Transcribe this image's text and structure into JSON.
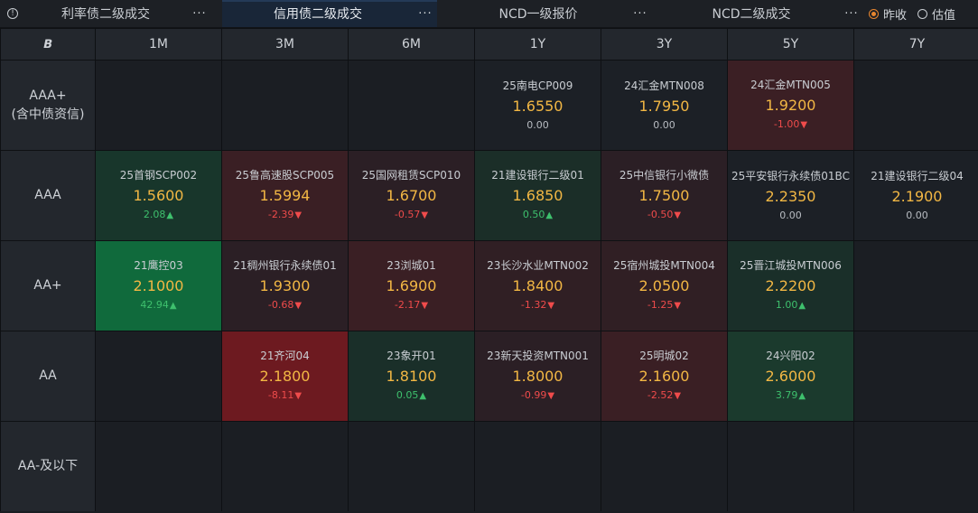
{
  "tabs": [
    {
      "label": "利率债二级成交",
      "more": "···",
      "active": false
    },
    {
      "label": "信用债二级成交",
      "more": "···",
      "active": true
    },
    {
      "label": "NCD一级报价",
      "more": "···",
      "active": false
    },
    {
      "label": "NCD二级成交",
      "more": "···",
      "active": false
    }
  ],
  "radio": {
    "options": [
      {
        "label": "昨收",
        "selected": true
      },
      {
        "label": "估值",
        "selected": false
      }
    ],
    "selected_color": "#e8862f"
  },
  "icons": {
    "info": "info-circle-icon",
    "corner": "bold-b-icon"
  },
  "grid": {
    "columns": [
      "1M",
      "3M",
      "6M",
      "1Y",
      "3Y",
      "5Y",
      "7Y"
    ],
    "rows": [
      {
        "label": [
          "AAA+",
          "(含中债资信)"
        ],
        "cells": [
          null,
          null,
          null,
          {
            "name": "25南电CP009",
            "rate": "1.6550",
            "change": "0.00",
            "dir": "flat",
            "bg": "#1c2026"
          },
          {
            "name": "24汇金MTN008",
            "rate": "1.7950",
            "change": "0.00",
            "dir": "flat",
            "bg": "#1c2026"
          },
          {
            "name": "24汇金MTN005",
            "rate": "1.9200",
            "change": "-1.00",
            "dir": "down",
            "bg": "#3b1f24"
          },
          null
        ]
      },
      {
        "label": [
          "AAA"
        ],
        "cells": [
          {
            "name": "25首钢SCP002",
            "rate": "1.5600",
            "change": "2.08",
            "dir": "up",
            "bg": "#18362b"
          },
          {
            "name": "25鲁高速股SCP005",
            "rate": "1.5994",
            "change": "-2.39",
            "dir": "down",
            "bg": "#3a1f24"
          },
          {
            "name": "25国网租赁SCP010",
            "rate": "1.6700",
            "change": "-0.57",
            "dir": "down",
            "bg": "#2b1f25"
          },
          {
            "name": "21建设银行二级01",
            "rate": "1.6850",
            "change": "0.50",
            "dir": "up",
            "bg": "#1b2e28"
          },
          {
            "name": "25中信银行小微债",
            "rate": "1.7500",
            "change": "-0.50",
            "dir": "down",
            "bg": "#2b1f25"
          },
          {
            "name": "25平安银行永续债01BC",
            "rate": "2.2350",
            "change": "0.00",
            "dir": "flat",
            "bg": "#1c2026"
          },
          {
            "name": "21建设银行二级04",
            "rate": "2.1900",
            "change": "0.00",
            "dir": "flat",
            "bg": "#1c2026"
          }
        ]
      },
      {
        "label": [
          "AA+"
        ],
        "cells": [
          {
            "name": "21鹰控03",
            "rate": "2.1000",
            "change": "42.94",
            "dir": "up",
            "bg": "#106a3c"
          },
          {
            "name": "21稠州银行永续债01",
            "rate": "1.9300",
            "change": "-0.68",
            "dir": "down",
            "bg": "#2b1f25"
          },
          {
            "name": "23浏城01",
            "rate": "1.6900",
            "change": "-2.17",
            "dir": "down",
            "bg": "#3a1f24"
          },
          {
            "name": "23长沙水业MTN002",
            "rate": "1.8400",
            "change": "-1.32",
            "dir": "down",
            "bg": "#301f24"
          },
          {
            "name": "25宿州城投MTN004",
            "rate": "2.0500",
            "change": "-1.25",
            "dir": "down",
            "bg": "#301f24"
          },
          {
            "name": "25晋江城投MTN006",
            "rate": "2.2200",
            "change": "1.00",
            "dir": "up",
            "bg": "#1a2f29"
          },
          null
        ]
      },
      {
        "label": [
          "AA"
        ],
        "cells": [
          null,
          {
            "name": "21齐河04",
            "rate": "2.1800",
            "change": "-8.11",
            "dir": "down",
            "bg": "#6d1a20"
          },
          {
            "name": "23象开01",
            "rate": "1.8100",
            "change": "0.05",
            "dir": "up",
            "bg": "#1a2f29"
          },
          {
            "name": "23新天投资MTN001",
            "rate": "1.8000",
            "change": "-0.99",
            "dir": "down",
            "bg": "#2b1f25"
          },
          {
            "name": "25明城02",
            "rate": "2.1600",
            "change": "-2.52",
            "dir": "down",
            "bg": "#3a1f24"
          },
          {
            "name": "24兴阳02",
            "rate": "2.6000",
            "change": "3.79",
            "dir": "up",
            "bg": "#1b3a2d"
          },
          null
        ]
      },
      {
        "label": [
          "AA-及以下"
        ],
        "cells": [
          null,
          null,
          null,
          null,
          null,
          null,
          null
        ]
      }
    ],
    "arrows": {
      "up": "▲",
      "down": "▼"
    }
  }
}
